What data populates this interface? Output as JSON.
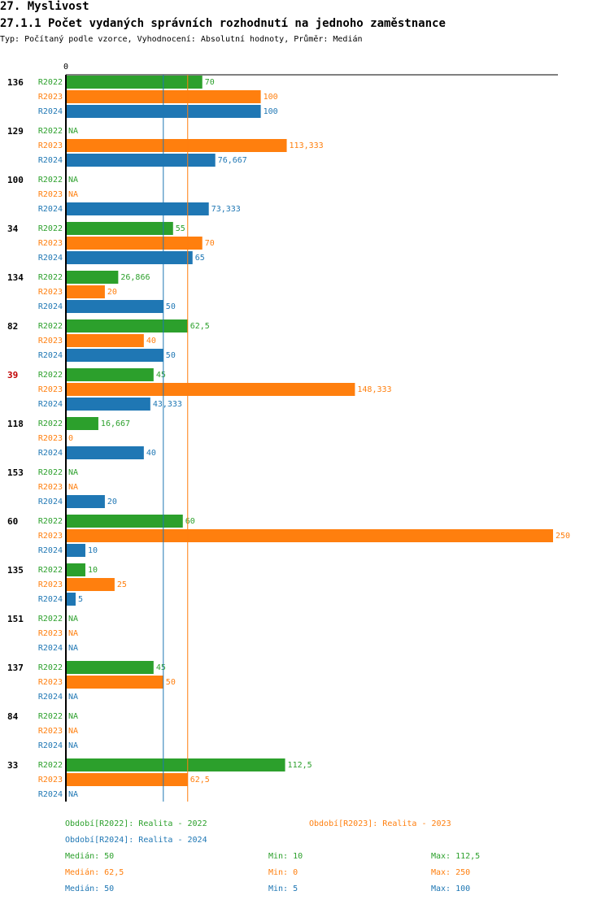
{
  "header": {
    "section": "27. Myslivost",
    "title": "27.1.1 Počet vydaných správních rozhodnutí na jednoho zaměstnance",
    "subtitle": "Typ: Počítaný podle vzorce, Vyhodnocení: Absolutní hodnoty, Průměr: Medián"
  },
  "colors": {
    "R2022": "#2ca02c",
    "R2023": "#ff7f0e",
    "R2024": "#1f77b4",
    "highlight": "#c00000",
    "text": "#000000"
  },
  "chart_data": {
    "type": "bar",
    "orientation": "horizontal",
    "axis_zero_label": "0",
    "xlim": [
      0,
      250
    ],
    "series_names": [
      "R2022",
      "R2023",
      "R2024"
    ],
    "highlighted_group": "39",
    "groups": [
      {
        "id": "136",
        "values": [
          70,
          100,
          100
        ],
        "labels": [
          "70",
          "100",
          "100"
        ]
      },
      {
        "id": "129",
        "values": [
          null,
          113.333,
          76.667
        ],
        "labels": [
          "NA",
          "113,333",
          "76,667"
        ]
      },
      {
        "id": "100",
        "values": [
          null,
          null,
          73.333
        ],
        "labels": [
          "NA",
          "NA",
          "73,333"
        ]
      },
      {
        "id": "34",
        "values": [
          55,
          70,
          65
        ],
        "labels": [
          "55",
          "70",
          "65"
        ]
      },
      {
        "id": "134",
        "values": [
          26.866,
          20,
          50
        ],
        "labels": [
          "26,866",
          "20",
          "50"
        ]
      },
      {
        "id": "82",
        "values": [
          62.5,
          40,
          50
        ],
        "labels": [
          "62,5",
          "40",
          "50"
        ]
      },
      {
        "id": "39",
        "values": [
          45,
          148.333,
          43.333
        ],
        "labels": [
          "45",
          "148,333",
          "43,333"
        ]
      },
      {
        "id": "118",
        "values": [
          16.667,
          0,
          40
        ],
        "labels": [
          "16,667",
          "0",
          "40"
        ]
      },
      {
        "id": "153",
        "values": [
          null,
          null,
          20
        ],
        "labels": [
          "NA",
          "NA",
          "20"
        ]
      },
      {
        "id": "60",
        "values": [
          60,
          250,
          10
        ],
        "labels": [
          "60",
          "250",
          "10"
        ]
      },
      {
        "id": "135",
        "values": [
          10,
          25,
          5
        ],
        "labels": [
          "10",
          "25",
          "5"
        ]
      },
      {
        "id": "151",
        "values": [
          null,
          null,
          null
        ],
        "labels": [
          "NA",
          "NA",
          "NA"
        ]
      },
      {
        "id": "137",
        "values": [
          45,
          50,
          null
        ],
        "labels": [
          "45",
          "50",
          "NA"
        ]
      },
      {
        "id": "84",
        "values": [
          null,
          null,
          null
        ],
        "labels": [
          "NA",
          "NA",
          "NA"
        ]
      },
      {
        "id": "33",
        "values": [
          112.5,
          62.5,
          null
        ],
        "labels": [
          "112,5",
          "62,5",
          "NA"
        ]
      }
    ],
    "median_lines": {
      "R2023": 62.5,
      "R2024": 50
    },
    "legend": [
      {
        "series": "R2022",
        "text": "Období[R2022]: Realita - 2022"
      },
      {
        "series": "R2023",
        "text": "Období[R2023]: Realita - 2023"
      },
      {
        "series": "R2024",
        "text": "Období[R2024]: Realita - 2024"
      }
    ],
    "stats": [
      {
        "series": "R2022",
        "median": "Medián: 50",
        "min": "Min: 10",
        "max": "Max: 112,5"
      },
      {
        "series": "R2023",
        "median": "Medián: 62,5",
        "min": "Min: 0",
        "max": "Max: 250"
      },
      {
        "series": "R2024",
        "median": "Medián: 50",
        "min": "Min: 5",
        "max": "Max: 100"
      }
    ]
  }
}
